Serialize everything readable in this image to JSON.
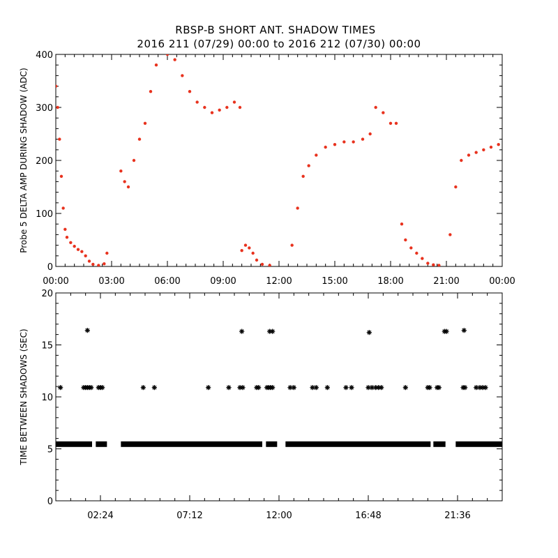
{
  "header": {
    "title_line1": "RBSP-B SHORT ANT. SHADOW TIMES",
    "title_line2": "2016 211 (07/29) 00:00 to 2016 212 (07/30) 00:00"
  },
  "colors": {
    "scatter": "#e8321e",
    "axis": "#000000",
    "marker": "#000000"
  },
  "chart_data": [
    {
      "type": "scatter",
      "ylabel": "Probe 5 DELTA AMP DURING SHADOW (ADC)",
      "xlim": [
        0,
        24
      ],
      "ylim": [
        0,
        400
      ],
      "x_tick_values": [
        0,
        3,
        6,
        9,
        12,
        15,
        18,
        21,
        24
      ],
      "x_tick_labels": [
        "00:00",
        "03:00",
        "06:00",
        "09:00",
        "12:00",
        "15:00",
        "18:00",
        "21:00",
        "00:00"
      ],
      "y_ticks": [
        0,
        100,
        200,
        300,
        400
      ],
      "series": [
        {
          "points": [
            [
              0.0,
              340
            ],
            [
              0.1,
              300
            ],
            [
              0.2,
              240
            ],
            [
              0.3,
              170
            ],
            [
              0.4,
              110
            ],
            [
              0.5,
              70
            ],
            [
              0.6,
              55
            ],
            [
              0.8,
              45
            ],
            [
              1.0,
              38
            ],
            [
              1.2,
              32
            ],
            [
              1.4,
              28
            ],
            [
              1.6,
              20
            ],
            [
              1.8,
              10
            ],
            [
              2.0,
              4
            ],
            [
              2.3,
              2
            ],
            [
              2.6,
              5
            ],
            [
              2.75,
              25
            ],
            [
              3.5,
              180
            ],
            [
              3.7,
              160
            ],
            [
              3.9,
              150
            ],
            [
              4.2,
              200
            ],
            [
              4.5,
              240
            ],
            [
              4.8,
              270
            ],
            [
              5.1,
              330
            ],
            [
              5.4,
              380
            ],
            [
              6.0,
              400
            ],
            [
              6.4,
              390
            ],
            [
              6.8,
              360
            ],
            [
              7.2,
              330
            ],
            [
              7.6,
              310
            ],
            [
              8.0,
              300
            ],
            [
              8.4,
              290
            ],
            [
              8.8,
              295
            ],
            [
              9.2,
              300
            ],
            [
              9.6,
              310
            ],
            [
              9.9,
              300
            ],
            [
              10.0,
              30
            ],
            [
              10.2,
              40
            ],
            [
              10.4,
              35
            ],
            [
              10.6,
              25
            ],
            [
              10.8,
              12
            ],
            [
              11.1,
              4
            ],
            [
              11.5,
              2
            ],
            [
              12.7,
              40
            ],
            [
              13.0,
              110
            ],
            [
              13.3,
              170
            ],
            [
              13.6,
              190
            ],
            [
              14.0,
              210
            ],
            [
              14.5,
              225
            ],
            [
              15.0,
              230
            ],
            [
              15.5,
              235
            ],
            [
              16.0,
              235
            ],
            [
              16.5,
              240
            ],
            [
              16.9,
              250
            ],
            [
              17.2,
              300
            ],
            [
              17.6,
              290
            ],
            [
              18.0,
              270
            ],
            [
              18.3,
              270
            ],
            [
              18.6,
              80
            ],
            [
              18.8,
              50
            ],
            [
              19.1,
              35
            ],
            [
              19.4,
              25
            ],
            [
              19.7,
              15
            ],
            [
              20.0,
              6
            ],
            [
              20.3,
              3
            ],
            [
              20.6,
              2
            ],
            [
              21.2,
              60
            ],
            [
              21.5,
              150
            ],
            [
              21.8,
              200
            ],
            [
              22.2,
              210
            ],
            [
              22.6,
              215
            ],
            [
              23.0,
              220
            ],
            [
              23.4,
              225
            ],
            [
              23.8,
              230
            ]
          ]
        }
      ]
    },
    {
      "type": "scatter",
      "ylabel": "TIME BETWEEN SHADOWS (SEC)",
      "xlim": [
        0,
        24
      ],
      "ylim": [
        0,
        20
      ],
      "x_tick_values": [
        2.4,
        7.2,
        12.0,
        16.8,
        21.6
      ],
      "x_tick_labels": [
        "02:24",
        "07:12",
        "12:00",
        "16:48",
        "21:36"
      ],
      "y_ticks": [
        0,
        5,
        10,
        15,
        20
      ],
      "series": [
        {
          "name": "",
          "x": [
            0.25,
            1.5,
            1.6,
            1.7,
            1.8,
            1.9,
            2.3,
            2.4,
            2.5,
            4.7,
            5.3,
            8.2,
            9.3,
            9.9,
            10.05,
            10.8,
            10.9,
            11.35,
            11.45,
            11.55,
            11.65,
            12.6,
            12.8,
            13.8,
            14.0,
            14.6,
            15.6,
            15.9,
            16.8,
            17.0,
            17.2,
            17.35,
            17.5,
            18.8,
            20.0,
            20.1,
            20.5,
            20.6,
            21.9,
            22.0,
            22.6,
            22.8,
            22.95,
            23.1
          ],
          "y": [
            10.9,
            10.9,
            10.9,
            10.9,
            10.9,
            10.9,
            10.9,
            10.9,
            10.9,
            10.9,
            10.9,
            10.9,
            10.9,
            10.9,
            10.9,
            10.9,
            10.9,
            10.9,
            10.9,
            10.9,
            10.9,
            10.9,
            10.9,
            10.9,
            10.9,
            10.9,
            10.9,
            10.9,
            10.9,
            10.9,
            10.9,
            10.9,
            10.9,
            10.9,
            10.9,
            10.9,
            10.9,
            10.9,
            10.9,
            10.9,
            10.9,
            10.9,
            10.9,
            10.9
          ]
        },
        {
          "name": "",
          "x": [
            1.7,
            10.0,
            11.5,
            11.65,
            16.85,
            20.9,
            21.0,
            21.95
          ],
          "y": [
            16.4,
            16.3,
            16.3,
            16.3,
            16.2,
            16.3,
            16.3,
            16.4
          ]
        }
      ],
      "band": {
        "y": 5.45,
        "segments": [
          [
            0.0,
            1.95
          ],
          [
            2.15,
            2.75
          ],
          [
            3.5,
            11.1
          ],
          [
            11.3,
            11.9
          ],
          [
            12.35,
            20.15
          ],
          [
            20.3,
            20.95
          ],
          [
            21.5,
            24.0
          ]
        ]
      }
    }
  ]
}
